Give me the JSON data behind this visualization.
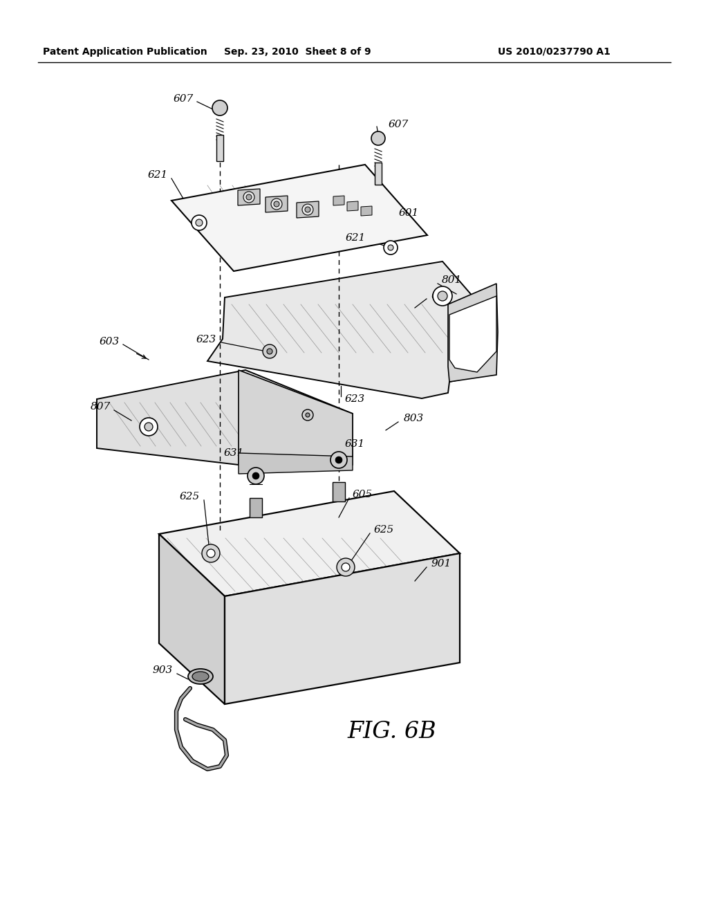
{
  "title_left": "Patent Application Publication",
  "title_mid": "Sep. 23, 2010  Sheet 8 of 9",
  "title_right": "US 2010/0237790 A1",
  "fig_label": "FIG. 6B",
  "background": "#ffffff",
  "line_color": "#000000"
}
